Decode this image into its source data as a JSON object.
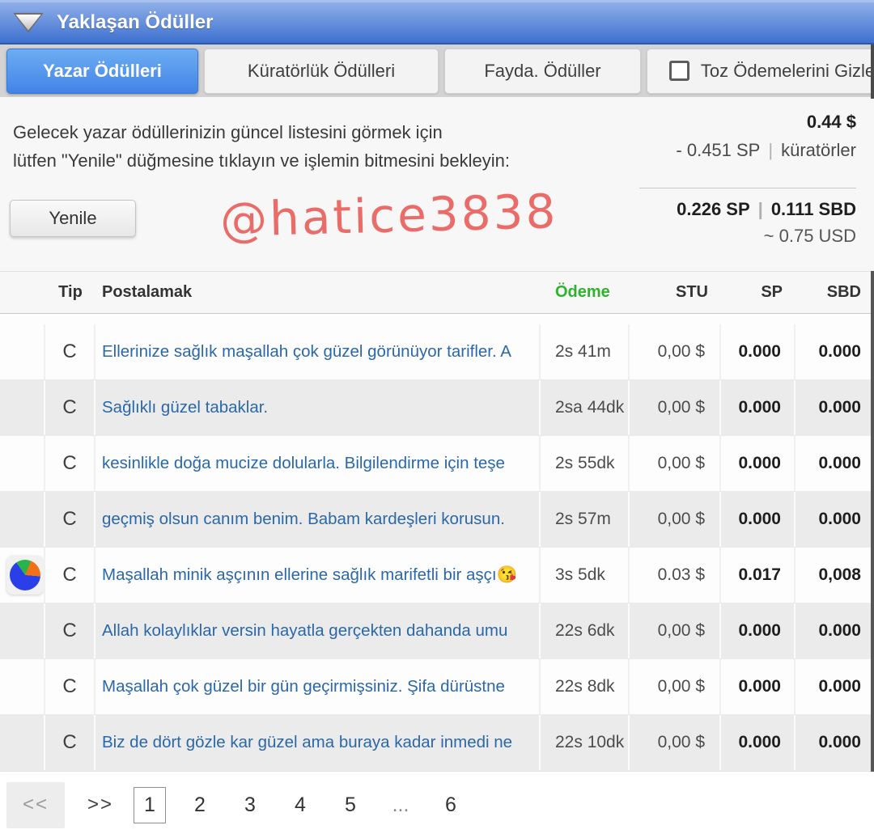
{
  "header": {
    "title": "Yaklaşan Ödüller"
  },
  "tabs": [
    {
      "key": "author-rewards",
      "label": "Yazar Ödülleri",
      "active": true,
      "checkbox": false
    },
    {
      "key": "curation-rewards",
      "label": "Küratörlük Ödülleri",
      "active": false,
      "checkbox": false
    },
    {
      "key": "benefit-rewards",
      "label": "Fayda. Ödüller",
      "active": false,
      "checkbox": false
    },
    {
      "key": "hide-dust",
      "label": "Toz Ödemelerini Gizle",
      "active": false,
      "checkbox": true
    }
  ],
  "info": {
    "line1": "Gelecek yazar ödüllerinizin güncel listesini görmek için",
    "line2": "lütfen \"Yenile\" düğmesine tıklayın ve işlemin bitmesini bekleyin:",
    "refresh_label": "Yenile",
    "watermark": "@hatice3838"
  },
  "summary": {
    "total_usd": "0.44 $",
    "sp_delta": "- 0.451 SP",
    "pipe": "|",
    "sp_delta_note": "küratörler",
    "sp_total": "0.226 SP",
    "sbd_total": "0.111 SBD",
    "usd_approx": "~ 0.75 USD"
  },
  "table": {
    "headers": {
      "tip": "Tip",
      "post": "Postalamak",
      "payment": "Ödeme",
      "stu": "STU",
      "sp": "SP",
      "sbd": "SBD"
    },
    "accent_color": "#2db32d",
    "link_color": "#2b68a9",
    "rows": [
      {
        "avatar": false,
        "type": "C",
        "title": "Ellerinize sağlık maşallah çok güzel görünüyor tarifler. A",
        "time": "2s 41m",
        "payment": "0,00 $",
        "sp": "0.000",
        "sbd": "0.000"
      },
      {
        "avatar": false,
        "type": "C",
        "title": "Sağlıklı güzel tabaklar.",
        "time": "2sa 44dk",
        "payment": "0,00 $",
        "sp": "0.000",
        "sbd": "0.000"
      },
      {
        "avatar": false,
        "type": "C",
        "title": "kesinlikle doğa mucize dolularla. Bilgilendirme için teşe",
        "time": "2s 55dk",
        "payment": "0,00 $",
        "sp": "0.000",
        "sbd": "0.000"
      },
      {
        "avatar": false,
        "type": "C",
        "title": "geçmiş olsun canım benim. Babam kardeşleri korusun.",
        "time": "2s 57m",
        "payment": "0,00 $",
        "sp": "0.000",
        "sbd": "0.000"
      },
      {
        "avatar": true,
        "type": "C",
        "title": "Maşallah minik aşçının ellerine sağlık marifetli bir aşçı😘",
        "time": "3s 5dk",
        "payment": "0.03 $",
        "sp": "0.017",
        "sbd": "0,008"
      },
      {
        "avatar": false,
        "type": "C",
        "title": "Allah kolaylıklar versin hayatla gerçekten dahanda umu",
        "time": "22s 6dk",
        "payment": "0,00 $",
        "sp": "0.000",
        "sbd": "0.000"
      },
      {
        "avatar": false,
        "type": "C",
        "title": "Maşallah çok güzel bir gün geçirmişsiniz. Şifa dürüstne",
        "time": "22s 8dk",
        "payment": "0,00 $",
        "sp": "0.000",
        "sbd": "0.000"
      },
      {
        "avatar": false,
        "type": "C",
        "title": "Biz de dört gözle kar güzel ama buraya kadar inmedi ne",
        "time": "22s 10dk",
        "payment": "0,00 $",
        "sp": "0.000",
        "sbd": "0.000"
      }
    ]
  },
  "pagination": {
    "first": "<<",
    "next": ">>",
    "pages": [
      {
        "label": "1",
        "active": true,
        "ellipsis": false
      },
      {
        "label": "2",
        "active": false,
        "ellipsis": false
      },
      {
        "label": "3",
        "active": false,
        "ellipsis": false
      },
      {
        "label": "4",
        "active": false,
        "ellipsis": false
      },
      {
        "label": "5",
        "active": false,
        "ellipsis": false
      },
      {
        "label": "...",
        "active": false,
        "ellipsis": true
      },
      {
        "label": "6",
        "active": false,
        "ellipsis": false
      }
    ]
  }
}
